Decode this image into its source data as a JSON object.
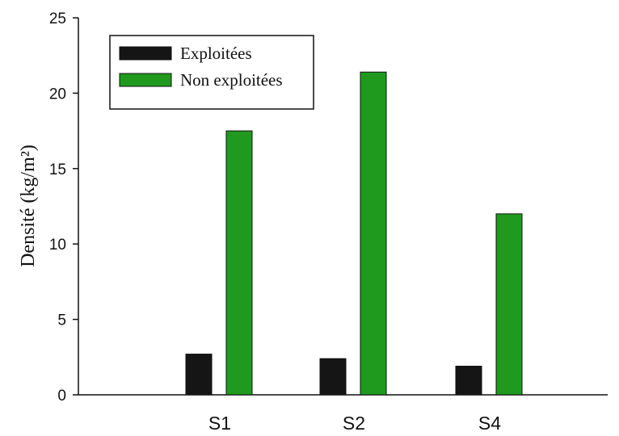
{
  "chart_data": {
    "type": "bar",
    "categories": [
      "S1",
      "S2",
      "S4"
    ],
    "series": [
      {
        "name": "Exploitées",
        "values": [
          2.7,
          2.4,
          1.9
        ],
        "color": "#151515"
      },
      {
        "name": "Non exploitées",
        "values": [
          17.5,
          21.4,
          12.0
        ],
        "color": "#1f9a1f"
      }
    ],
    "title": "",
    "xlabel": "",
    "ylabel": "Densité (kg/m²)",
    "ylim": [
      0,
      25
    ],
    "yticks": [
      0,
      5,
      10,
      15,
      20,
      25
    ],
    "grid": false,
    "legend_position": "top-left"
  }
}
